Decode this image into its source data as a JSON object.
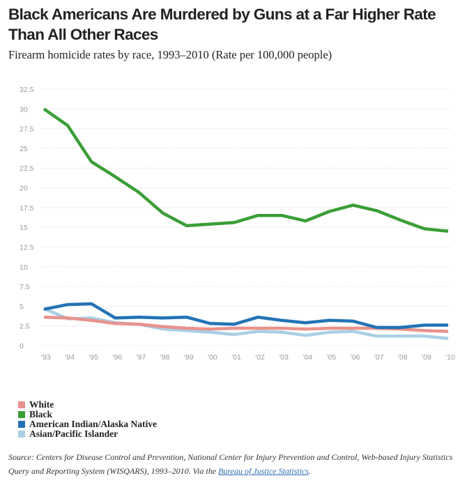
{
  "header": {
    "title": "Black Americans Are Murdered by Guns at a Far Higher Rate Than All Other Races",
    "subtitle": "Firearm homicide rates by race, 1993–2010 (Rate per 100,000 people)"
  },
  "chart_data": {
    "type": "line",
    "title": "Black Americans Are Murdered by Guns at a Far Higher Rate Than All Other Races",
    "subtitle": "Firearm homicide rates by race, 1993–2010 (Rate per 100,000 people)",
    "xlabel": "",
    "ylabel": "",
    "categories": [
      "'93",
      "'94",
      "'95",
      "'96",
      "'97",
      "'98",
      "'99",
      "'00",
      "'01",
      "'02",
      "'03",
      "'04",
      "'05",
      "'06",
      "'07",
      "'08",
      "'09",
      "'10"
    ],
    "ylim": [
      0,
      32.5
    ],
    "yticks": [
      "0",
      "2.5",
      "5",
      "7.5",
      "10",
      "12.5",
      "15",
      "17.5",
      "20",
      "22.5",
      "25",
      "27.5",
      "30",
      "32.5"
    ],
    "grid": true,
    "legend_position": "bottom-left",
    "series": [
      {
        "name": "White",
        "color": "#e8928c",
        "values": [
          3.6,
          3.5,
          3.2,
          2.8,
          2.7,
          2.4,
          2.2,
          2.1,
          2.2,
          2.2,
          2.2,
          2.1,
          2.2,
          2.2,
          2.2,
          2.1,
          1.9,
          1.8
        ]
      },
      {
        "name": "Black",
        "color": "#3a9e36",
        "values": [
          30.0,
          27.9,
          23.3,
          21.4,
          19.4,
          16.8,
          15.2,
          15.4,
          15.6,
          16.5,
          16.5,
          15.8,
          17.0,
          17.8,
          17.1,
          15.9,
          14.8,
          14.5
        ]
      },
      {
        "name": "American Indian/Alaska Native",
        "color": "#2273b5",
        "values": [
          4.6,
          5.2,
          5.3,
          3.5,
          3.6,
          3.5,
          3.6,
          2.8,
          2.7,
          3.6,
          3.2,
          2.9,
          3.2,
          3.1,
          2.3,
          2.3,
          2.6,
          2.6
        ]
      },
      {
        "name": "Asian/Pacific Islander",
        "color": "#a9cfe5",
        "values": [
          4.7,
          3.4,
          3.5,
          2.9,
          2.7,
          2.1,
          1.9,
          1.7,
          1.4,
          1.8,
          1.7,
          1.3,
          1.7,
          1.8,
          1.2,
          1.2,
          1.2,
          0.9
        ]
      }
    ]
  },
  "source": {
    "text": "Source: Centers for Disease Control and Prevention, National Center for Injury Prevention and Control, Web-based Injury Statistics Query and Reporting System (WISQARS), 1993–2010. Via the ",
    "link_text": "Bureau of Justice Statistics",
    "end": "."
  }
}
